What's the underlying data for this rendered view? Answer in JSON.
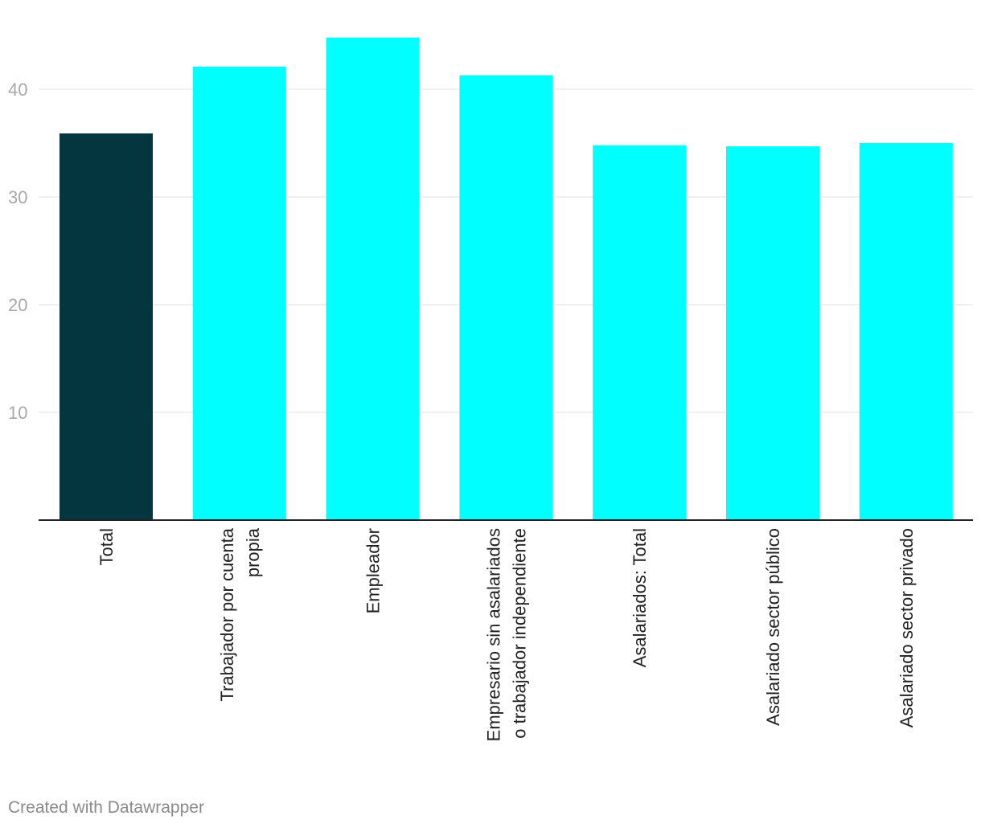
{
  "chart_data": {
    "type": "bar",
    "categories": [
      [
        "Total"
      ],
      [
        "Trabajador por cuenta",
        "propia"
      ],
      [
        "Empleador"
      ],
      [
        "Empresario sin asalariados",
        "o trabajador independiente"
      ],
      [
        "Asalariados: Total"
      ],
      [
        "Asalariado sector público"
      ],
      [
        "Asalariado sector privado"
      ]
    ],
    "values": [
      35.9,
      42.1,
      44.8,
      41.3,
      34.8,
      34.7,
      35.0
    ],
    "highlight_index": 0,
    "colors": {
      "highlight": "#04363f",
      "default": "#00ffff",
      "grid": "#e0e0e0",
      "axis": "#222222",
      "tick_label": "#a8a8a8",
      "category_label": "#222222"
    },
    "ylim": [
      0,
      40
    ],
    "yticks": [
      10,
      20,
      30,
      40
    ],
    "grid": true,
    "title": "",
    "xlabel": "",
    "ylabel": ""
  },
  "footer": {
    "credit": "Created with Datawrapper"
  }
}
